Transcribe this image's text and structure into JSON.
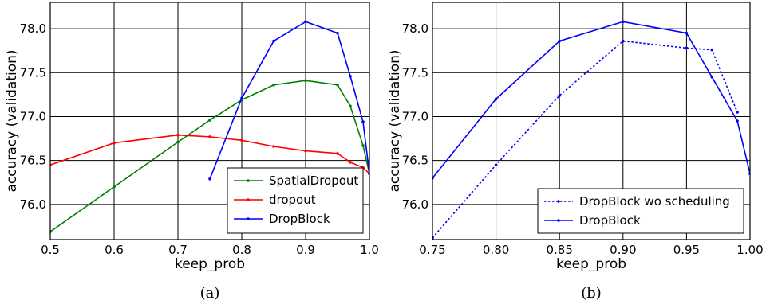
{
  "chart_data": [
    {
      "type": "line",
      "caption": "(a)",
      "xlabel": "keep_prob",
      "ylabel": "accuracy (validation)",
      "xlim": [
        0.5,
        1.0
      ],
      "ylim": [
        75.6,
        78.3
      ],
      "xticks": [
        0.5,
        0.6,
        0.7,
        0.8,
        0.9,
        1.0
      ],
      "xtick_labels": [
        "0.5",
        "0.6",
        "0.7",
        "0.8",
        "0.9",
        "1.0"
      ],
      "yticks": [
        76.0,
        76.5,
        77.0,
        77.5,
        78.0
      ],
      "ytick_labels": [
        "76.0",
        "76.5",
        "77.0",
        "77.5",
        "78.0"
      ],
      "grid": true,
      "legend_position": "lower-right",
      "series": [
        {
          "name": "SpatialDropout",
          "color": "#008000",
          "style": "solid",
          "x": [
            0.5,
            0.6,
            0.7,
            0.75,
            0.8,
            0.85,
            0.9,
            0.95,
            0.97,
            0.99,
            1.0
          ],
          "y": [
            75.69,
            76.2,
            76.71,
            76.96,
            77.19,
            77.36,
            77.41,
            77.36,
            77.12,
            76.67,
            76.35
          ]
        },
        {
          "name": "dropout",
          "color": "#ff0000",
          "style": "solid",
          "x": [
            0.5,
            0.6,
            0.7,
            0.75,
            0.8,
            0.85,
            0.9,
            0.95,
            0.97,
            0.99,
            1.0
          ],
          "y": [
            76.45,
            76.7,
            76.79,
            76.77,
            76.73,
            76.66,
            76.61,
            76.58,
            76.48,
            76.42,
            76.35
          ]
        },
        {
          "name": "DropBlock",
          "color": "#0000ff",
          "style": "solid",
          "x": [
            0.75,
            0.8,
            0.85,
            0.9,
            0.95,
            0.97,
            0.99,
            1.0
          ],
          "y": [
            76.29,
            77.21,
            77.86,
            78.08,
            77.95,
            77.46,
            76.94,
            76.35
          ]
        }
      ]
    },
    {
      "type": "line",
      "caption": "(b)",
      "xlabel": "keep_prob",
      "ylabel": "accuracy (validation)",
      "xlim": [
        0.75,
        1.0
      ],
      "ylim": [
        75.6,
        78.3
      ],
      "xticks": [
        0.75,
        0.8,
        0.85,
        0.9,
        0.95,
        1.0
      ],
      "xtick_labels": [
        "0.75",
        "0.80",
        "0.85",
        "0.90",
        "0.95",
        "1.00"
      ],
      "yticks": [
        76.0,
        76.5,
        77.0,
        77.5,
        78.0
      ],
      "ytick_labels": [
        "76.0",
        "76.5",
        "77.0",
        "77.5",
        "78.0"
      ],
      "grid": true,
      "legend_position": "lower-right",
      "series": [
        {
          "name": "DropBlock wo scheduling",
          "color": "#0000ff",
          "style": "dotted",
          "x": [
            0.75,
            0.8,
            0.85,
            0.9,
            0.95,
            0.97,
            0.99
          ],
          "y": [
            75.62,
            76.45,
            77.24,
            77.86,
            77.78,
            77.76,
            77.05
          ]
        },
        {
          "name": "DropBlock",
          "color": "#0000ff",
          "style": "solid",
          "x": [
            0.75,
            0.8,
            0.85,
            0.9,
            0.95,
            0.97,
            0.99,
            1.0
          ],
          "y": [
            76.3,
            77.2,
            77.86,
            78.08,
            77.95,
            77.45,
            76.95,
            76.35
          ]
        }
      ]
    }
  ]
}
